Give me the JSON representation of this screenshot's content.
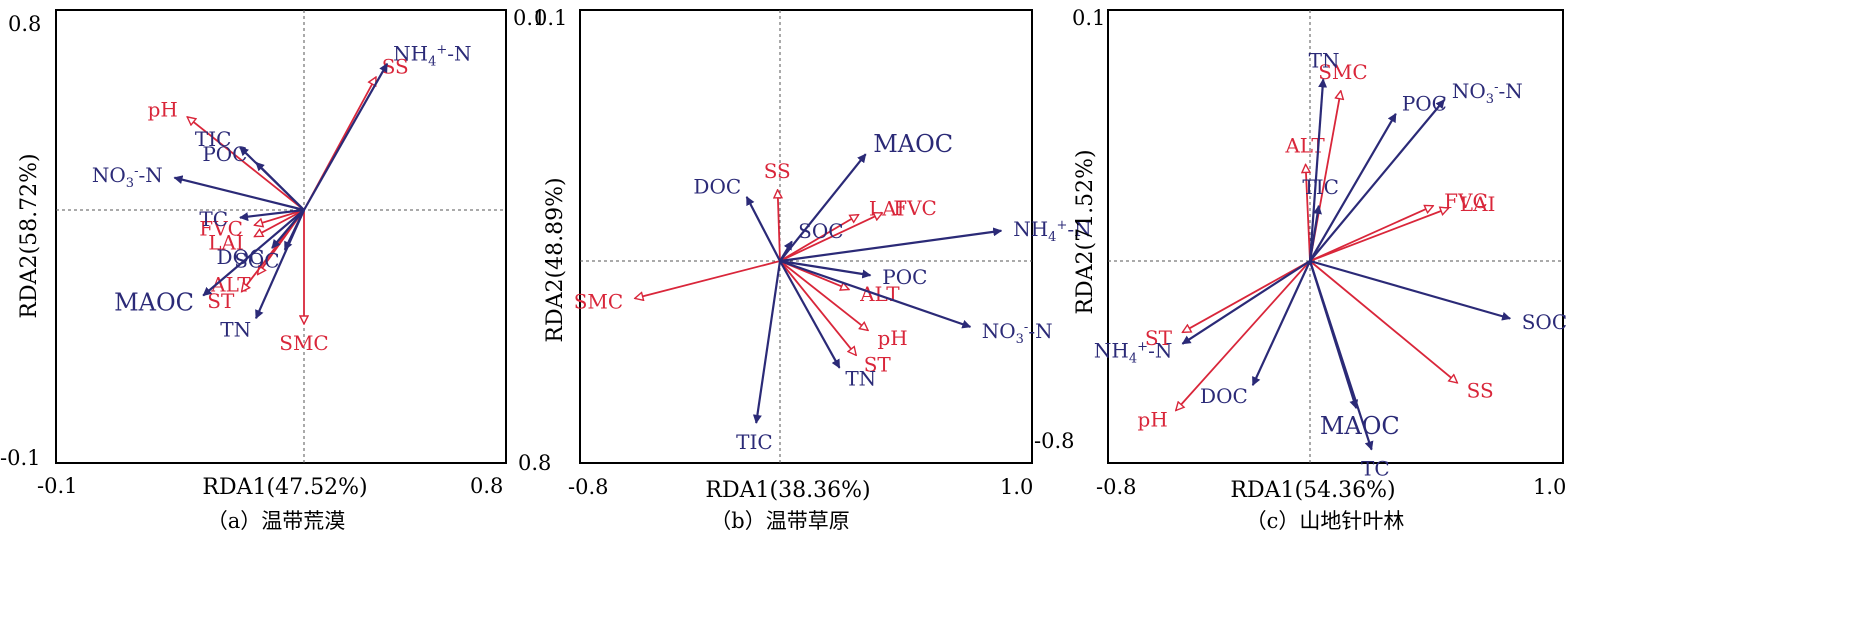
{
  "colors": {
    "env": "#d9263a",
    "soil": "#2b2a77",
    "axis": "#000000",
    "zero": "#555555"
  },
  "chart_data": [
    {
      "type": "scatter",
      "subtype": "rda-biplot",
      "caption": "（a）温带荒漠",
      "xlabel": "RDA1(47.52%)",
      "ylabel": "RDA2(58.72%)",
      "xtick_labels": [
        "-0.1",
        "0.8"
      ],
      "ytick_labels": [
        "0.8",
        "-0.1"
      ],
      "right_tick_label": "0.1",
      "vectors": [
        {
          "name": "SS",
          "group": "env",
          "x": 0.45,
          "y": 0.7
        },
        {
          "name": "pH",
          "group": "env",
          "x": -0.73,
          "y": 0.49
        },
        {
          "name": "FVC",
          "group": "env",
          "x": -0.31,
          "y": -0.08
        },
        {
          "name": "LAI",
          "group": "env",
          "x": -0.31,
          "y": -0.14
        },
        {
          "name": "ALT",
          "group": "env",
          "x": -0.29,
          "y": -0.34
        },
        {
          "name": "ST",
          "group": "env",
          "x": -0.39,
          "y": -0.43
        },
        {
          "name": "SMC",
          "group": "env",
          "x": 0.0,
          "y": -0.6
        },
        {
          "name": "NH4+-N",
          "group": "soil",
          "x": 0.52,
          "y": 0.77
        },
        {
          "name": "TIC",
          "group": "soil",
          "x": -0.4,
          "y": 0.33
        },
        {
          "name": "POC",
          "group": "soil",
          "x": -0.3,
          "y": 0.25
        },
        {
          "name": "NO3--N",
          "group": "soil",
          "x": -0.81,
          "y": 0.17
        },
        {
          "name": "TC",
          "group": "soil",
          "x": -0.4,
          "y": -0.04
        },
        {
          "name": "DOC",
          "group": "soil",
          "x": -0.2,
          "y": -0.2
        },
        {
          "name": "SOC",
          "group": "soil",
          "x": -0.12,
          "y": -0.21
        },
        {
          "name": "MAOC",
          "group": "soil",
          "x": -0.63,
          "y": -0.45
        },
        {
          "name": "TN",
          "group": "soil",
          "x": -0.3,
          "y": -0.57
        }
      ]
    },
    {
      "type": "scatter",
      "subtype": "rda-biplot",
      "caption": "（b）温带草原",
      "xlabel": "RDA1(38.36%)",
      "ylabel": "RDA2(48.89%)",
      "xtick_labels": [
        "-0.8",
        "1.0"
      ],
      "ytick_labels": [
        "0.1",
        "0.8"
      ],
      "right_tick_label": "-0.8",
      "vectors": [
        {
          "name": "SS",
          "group": "env",
          "x": -0.01,
          "y": 0.4
        },
        {
          "name": "LAI",
          "group": "env",
          "x": 0.33,
          "y": 0.26
        },
        {
          "name": "FVC",
          "group": "env",
          "x": 0.43,
          "y": 0.27
        },
        {
          "name": "SMC",
          "group": "env",
          "x": -0.61,
          "y": -0.21
        },
        {
          "name": "ALT",
          "group": "env",
          "x": 0.29,
          "y": -0.16
        },
        {
          "name": "pH",
          "group": "env",
          "x": 0.37,
          "y": -0.39
        },
        {
          "name": "ST",
          "group": "env",
          "x": 0.32,
          "y": -0.53
        },
        {
          "name": "MAOC",
          "group": "soil",
          "x": 0.36,
          "y": 0.6
        },
        {
          "name": "DOC",
          "group": "soil",
          "x": -0.14,
          "y": 0.36
        },
        {
          "name": "SOC",
          "group": "soil",
          "x": 0.05,
          "y": 0.11
        },
        {
          "name": "NH4+-N",
          "group": "soil",
          "x": 0.93,
          "y": 0.17
        },
        {
          "name": "POC",
          "group": "soil",
          "x": 0.38,
          "y": -0.08
        },
        {
          "name": "NO3--N",
          "group": "soil",
          "x": 0.8,
          "y": -0.37
        },
        {
          "name": "TN",
          "group": "soil",
          "x": 0.25,
          "y": -0.6
        },
        {
          "name": "TIC",
          "group": "soil",
          "x": -0.1,
          "y": -0.91
        }
      ]
    },
    {
      "type": "scatter",
      "subtype": "rda-biplot",
      "caption": "（c）山地针叶林",
      "xlabel": "RDA1(54.36%)",
      "ylabel": "RDA2(71.52%)",
      "xtick_labels": [
        "-0.8",
        "1.0"
      ],
      "ytick_labels": [
        "0.1",
        ""
      ],
      "right_tick_label": "",
      "vectors": [
        {
          "name": "SMC",
          "group": "env",
          "x": 0.14,
          "y": 0.74
        },
        {
          "name": "ALT",
          "group": "env",
          "x": -0.02,
          "y": 0.42
        },
        {
          "name": "FVC",
          "group": "env",
          "x": 0.56,
          "y": 0.24
        },
        {
          "name": "LAI",
          "group": "env",
          "x": 0.63,
          "y": 0.23
        },
        {
          "name": "ST",
          "group": "env",
          "x": -0.58,
          "y": -0.31
        },
        {
          "name": "pH",
          "group": "env",
          "x": -0.61,
          "y": -0.65
        },
        {
          "name": "SS",
          "group": "env",
          "x": 0.67,
          "y": -0.53
        },
        {
          "name": "TN",
          "group": "soil",
          "x": 0.06,
          "y": 0.79
        },
        {
          "name": "POC",
          "group": "soil",
          "x": 0.39,
          "y": 0.64
        },
        {
          "name": "NO3--N",
          "group": "soil",
          "x": 0.61,
          "y": 0.7
        },
        {
          "name": "TIC",
          "group": "soil",
          "x": 0.04,
          "y": 0.24
        },
        {
          "name": "NH4+-N",
          "group": "soil",
          "x": -0.58,
          "y": -0.36
        },
        {
          "name": "SOC",
          "group": "soil",
          "x": 0.91,
          "y": -0.25
        },
        {
          "name": "DOC",
          "group": "soil",
          "x": -0.26,
          "y": -0.54
        },
        {
          "name": "MAOC",
          "group": "soil",
          "x": 0.21,
          "y": -0.64
        },
        {
          "name": "TC",
          "group": "soil",
          "x": 0.28,
          "y": -0.82
        }
      ]
    }
  ]
}
